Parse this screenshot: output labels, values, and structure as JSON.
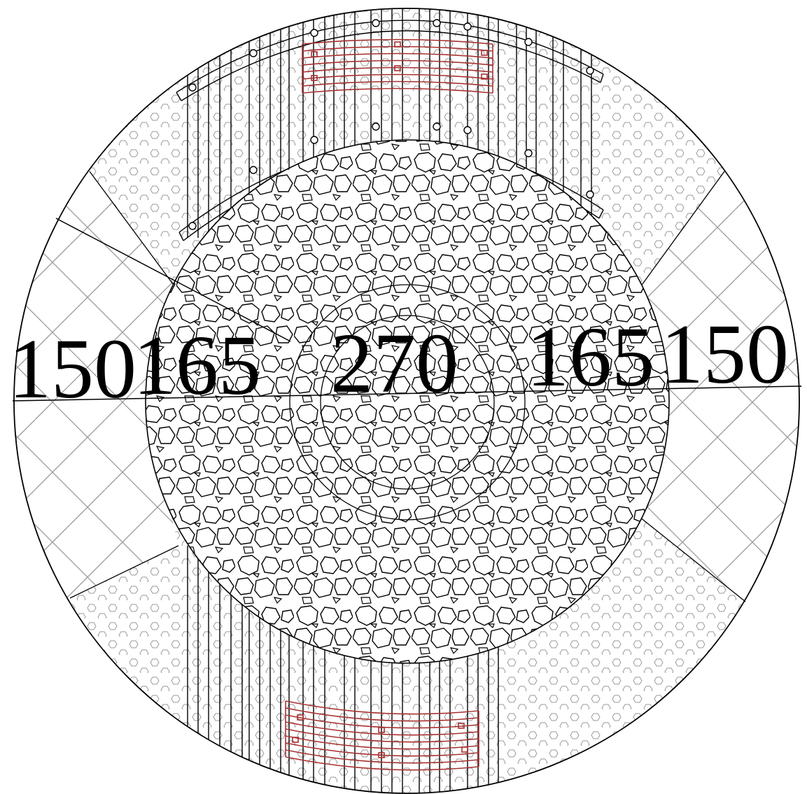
{
  "dimensions": {
    "labels": [
      "150",
      "165",
      "270",
      "165",
      "150"
    ]
  },
  "colors": {
    "line": "#000000",
    "hatch": "#9a9a9a",
    "rebar": "#a83232",
    "background": "#ffffff"
  }
}
